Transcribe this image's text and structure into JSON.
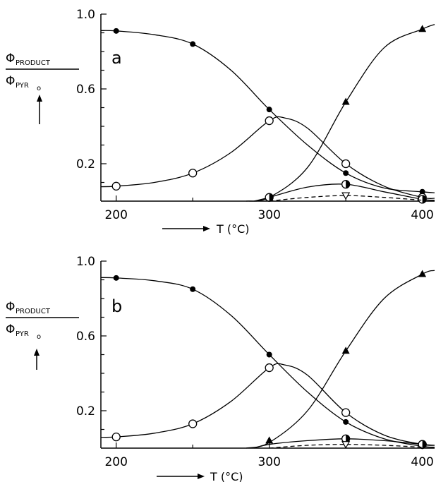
{
  "chart_data": [
    {
      "type": "line",
      "panel_label": "a",
      "xlabel": "T (°C)",
      "ylabel": {
        "numerator": "Φ",
        "numerator_sub": "PRODUCT",
        "denominator": "Φ",
        "denominator_sub": "PYR",
        "denominator_subsub": "o"
      },
      "xlim": [
        190,
        408
      ],
      "ylim": [
        0,
        1.0
      ],
      "xticks": [
        200,
        300,
        400
      ],
      "yticks": [
        {
          "value": 0.2,
          "label": "0.2"
        },
        {
          "value": 0.6,
          "label": "0.6"
        },
        {
          "value": 1.0,
          "label": "1.0"
        }
      ],
      "series": [
        {
          "marker": "filled-circle",
          "points": [
            {
              "x": 200,
              "y": 0.91
            },
            {
              "x": 250,
              "y": 0.84
            },
            {
              "x": 300,
              "y": 0.49
            },
            {
              "x": 350,
              "y": 0.15
            },
            {
              "x": 400,
              "y": 0.05
            }
          ],
          "curve": [
            {
              "x": 190,
              "y": 0.912
            },
            {
              "x": 200,
              "y": 0.91
            },
            {
              "x": 225,
              "y": 0.89
            },
            {
              "x": 250,
              "y": 0.84
            },
            {
              "x": 275,
              "y": 0.7
            },
            {
              "x": 300,
              "y": 0.49
            },
            {
              "x": 325,
              "y": 0.3
            },
            {
              "x": 350,
              "y": 0.15
            },
            {
              "x": 375,
              "y": 0.07
            },
            {
              "x": 400,
              "y": 0.05
            },
            {
              "x": 408,
              "y": 0.045
            }
          ]
        },
        {
          "marker": "open-circle",
          "points": [
            {
              "x": 200,
              "y": 0.08
            },
            {
              "x": 250,
              "y": 0.15
            },
            {
              "x": 300,
              "y": 0.43
            },
            {
              "x": 350,
              "y": 0.2
            },
            {
              "x": 400,
              "y": 0.02
            }
          ],
          "curve": [
            {
              "x": 190,
              "y": 0.077
            },
            {
              "x": 200,
              "y": 0.08
            },
            {
              "x": 225,
              "y": 0.1
            },
            {
              "x": 250,
              "y": 0.15
            },
            {
              "x": 275,
              "y": 0.26
            },
            {
              "x": 300,
              "y": 0.43
            },
            {
              "x": 310,
              "y": 0.445
            },
            {
              "x": 325,
              "y": 0.39
            },
            {
              "x": 350,
              "y": 0.2
            },
            {
              "x": 375,
              "y": 0.08
            },
            {
              "x": 400,
              "y": 0.02
            },
            {
              "x": 408,
              "y": 0.015
            }
          ]
        },
        {
          "marker": "filled-triangle",
          "points": [
            {
              "x": 300,
              "y": 0.02
            },
            {
              "x": 350,
              "y": 0.53
            },
            {
              "x": 400,
              "y": 0.92
            }
          ],
          "curve": [
            {
              "x": 285,
              "y": 0.0
            },
            {
              "x": 300,
              "y": 0.02
            },
            {
              "x": 325,
              "y": 0.18
            },
            {
              "x": 350,
              "y": 0.53
            },
            {
              "x": 375,
              "y": 0.82
            },
            {
              "x": 400,
              "y": 0.92
            },
            {
              "x": 408,
              "y": 0.945
            }
          ]
        },
        {
          "marker": "half-filled-circle",
          "points": [
            {
              "x": 300,
              "y": 0.02
            },
            {
              "x": 350,
              "y": 0.09
            },
            {
              "x": 400,
              "y": 0.01
            }
          ],
          "curve": [
            {
              "x": 290,
              "y": 0.0
            },
            {
              "x": 300,
              "y": 0.02
            },
            {
              "x": 325,
              "y": 0.075
            },
            {
              "x": 350,
              "y": 0.09
            },
            {
              "x": 375,
              "y": 0.05
            },
            {
              "x": 400,
              "y": 0.01
            },
            {
              "x": 408,
              "y": 0.005
            }
          ]
        },
        {
          "marker": "open-triangle-down",
          "dashed": true,
          "points": [
            {
              "x": 350,
              "y": 0.03
            }
          ],
          "curve": [
            {
              "x": 300,
              "y": 0.0
            },
            {
              "x": 325,
              "y": 0.02
            },
            {
              "x": 350,
              "y": 0.03
            },
            {
              "x": 375,
              "y": 0.02
            },
            {
              "x": 400,
              "y": 0.005
            }
          ]
        }
      ]
    },
    {
      "type": "line",
      "panel_label": "b",
      "xlabel": "T (°C)",
      "ylabel": {
        "numerator": "Φ",
        "numerator_sub": "PRODUCT",
        "denominator": "Φ",
        "denominator_sub": "PYR",
        "denominator_subsub": "o"
      },
      "xlim": [
        190,
        408
      ],
      "ylim": [
        0,
        1.0
      ],
      "xticks": [
        200,
        300,
        400
      ],
      "yticks": [
        {
          "value": 0.2,
          "label": "0.2"
        },
        {
          "value": 0.6,
          "label": "0.6"
        },
        {
          "value": 1.0,
          "label": "1.0"
        }
      ],
      "series": [
        {
          "marker": "filled-circle",
          "points": [
            {
              "x": 200,
              "y": 0.91
            },
            {
              "x": 250,
              "y": 0.85
            },
            {
              "x": 300,
              "y": 0.5
            },
            {
              "x": 350,
              "y": 0.14
            },
            {
              "x": 400,
              "y": 0.01
            }
          ],
          "curve": [
            {
              "x": 190,
              "y": 0.912
            },
            {
              "x": 200,
              "y": 0.91
            },
            {
              "x": 225,
              "y": 0.895
            },
            {
              "x": 250,
              "y": 0.85
            },
            {
              "x": 275,
              "y": 0.71
            },
            {
              "x": 300,
              "y": 0.5
            },
            {
              "x": 325,
              "y": 0.3
            },
            {
              "x": 350,
              "y": 0.14
            },
            {
              "x": 375,
              "y": 0.05
            },
            {
              "x": 400,
              "y": 0.01
            },
            {
              "x": 408,
              "y": 0.005
            }
          ]
        },
        {
          "marker": "open-circle",
          "points": [
            {
              "x": 200,
              "y": 0.06
            },
            {
              "x": 250,
              "y": 0.13
            },
            {
              "x": 300,
              "y": 0.43
            },
            {
              "x": 350,
              "y": 0.19
            },
            {
              "x": 400,
              "y": 0.02
            }
          ],
          "curve": [
            {
              "x": 190,
              "y": 0.058
            },
            {
              "x": 200,
              "y": 0.06
            },
            {
              "x": 225,
              "y": 0.08
            },
            {
              "x": 250,
              "y": 0.13
            },
            {
              "x": 275,
              "y": 0.25
            },
            {
              "x": 300,
              "y": 0.43
            },
            {
              "x": 310,
              "y": 0.445
            },
            {
              "x": 325,
              "y": 0.39
            },
            {
              "x": 350,
              "y": 0.19
            },
            {
              "x": 375,
              "y": 0.07
            },
            {
              "x": 400,
              "y": 0.02
            },
            {
              "x": 408,
              "y": 0.015
            }
          ]
        },
        {
          "marker": "filled-triangle",
          "points": [
            {
              "x": 300,
              "y": 0.04
            },
            {
              "x": 350,
              "y": 0.52
            },
            {
              "x": 400,
              "y": 0.93
            }
          ],
          "curve": [
            {
              "x": 285,
              "y": 0.0
            },
            {
              "x": 300,
              "y": 0.03
            },
            {
              "x": 325,
              "y": 0.2
            },
            {
              "x": 350,
              "y": 0.52
            },
            {
              "x": 375,
              "y": 0.8
            },
            {
              "x": 400,
              "y": 0.93
            },
            {
              "x": 408,
              "y": 0.95
            }
          ]
        },
        {
          "marker": "half-filled-circle",
          "points": [
            {
              "x": 350,
              "y": 0.05
            },
            {
              "x": 400,
              "y": 0.02
            }
          ],
          "curve": [
            {
              "x": 290,
              "y": 0.0
            },
            {
              "x": 300,
              "y": 0.02
            },
            {
              "x": 325,
              "y": 0.04
            },
            {
              "x": 350,
              "y": 0.05
            },
            {
              "x": 375,
              "y": 0.04
            },
            {
              "x": 400,
              "y": 0.02
            },
            {
              "x": 408,
              "y": 0.015
            }
          ]
        },
        {
          "marker": "open-triangle-down",
          "dashed": true,
          "points": [
            {
              "x": 350,
              "y": 0.02
            }
          ],
          "curve": [
            {
              "x": 300,
              "y": 0.0
            },
            {
              "x": 325,
              "y": 0.015
            },
            {
              "x": 350,
              "y": 0.02
            },
            {
              "x": 375,
              "y": 0.015
            },
            {
              "x": 400,
              "y": 0.005
            }
          ]
        }
      ]
    }
  ]
}
